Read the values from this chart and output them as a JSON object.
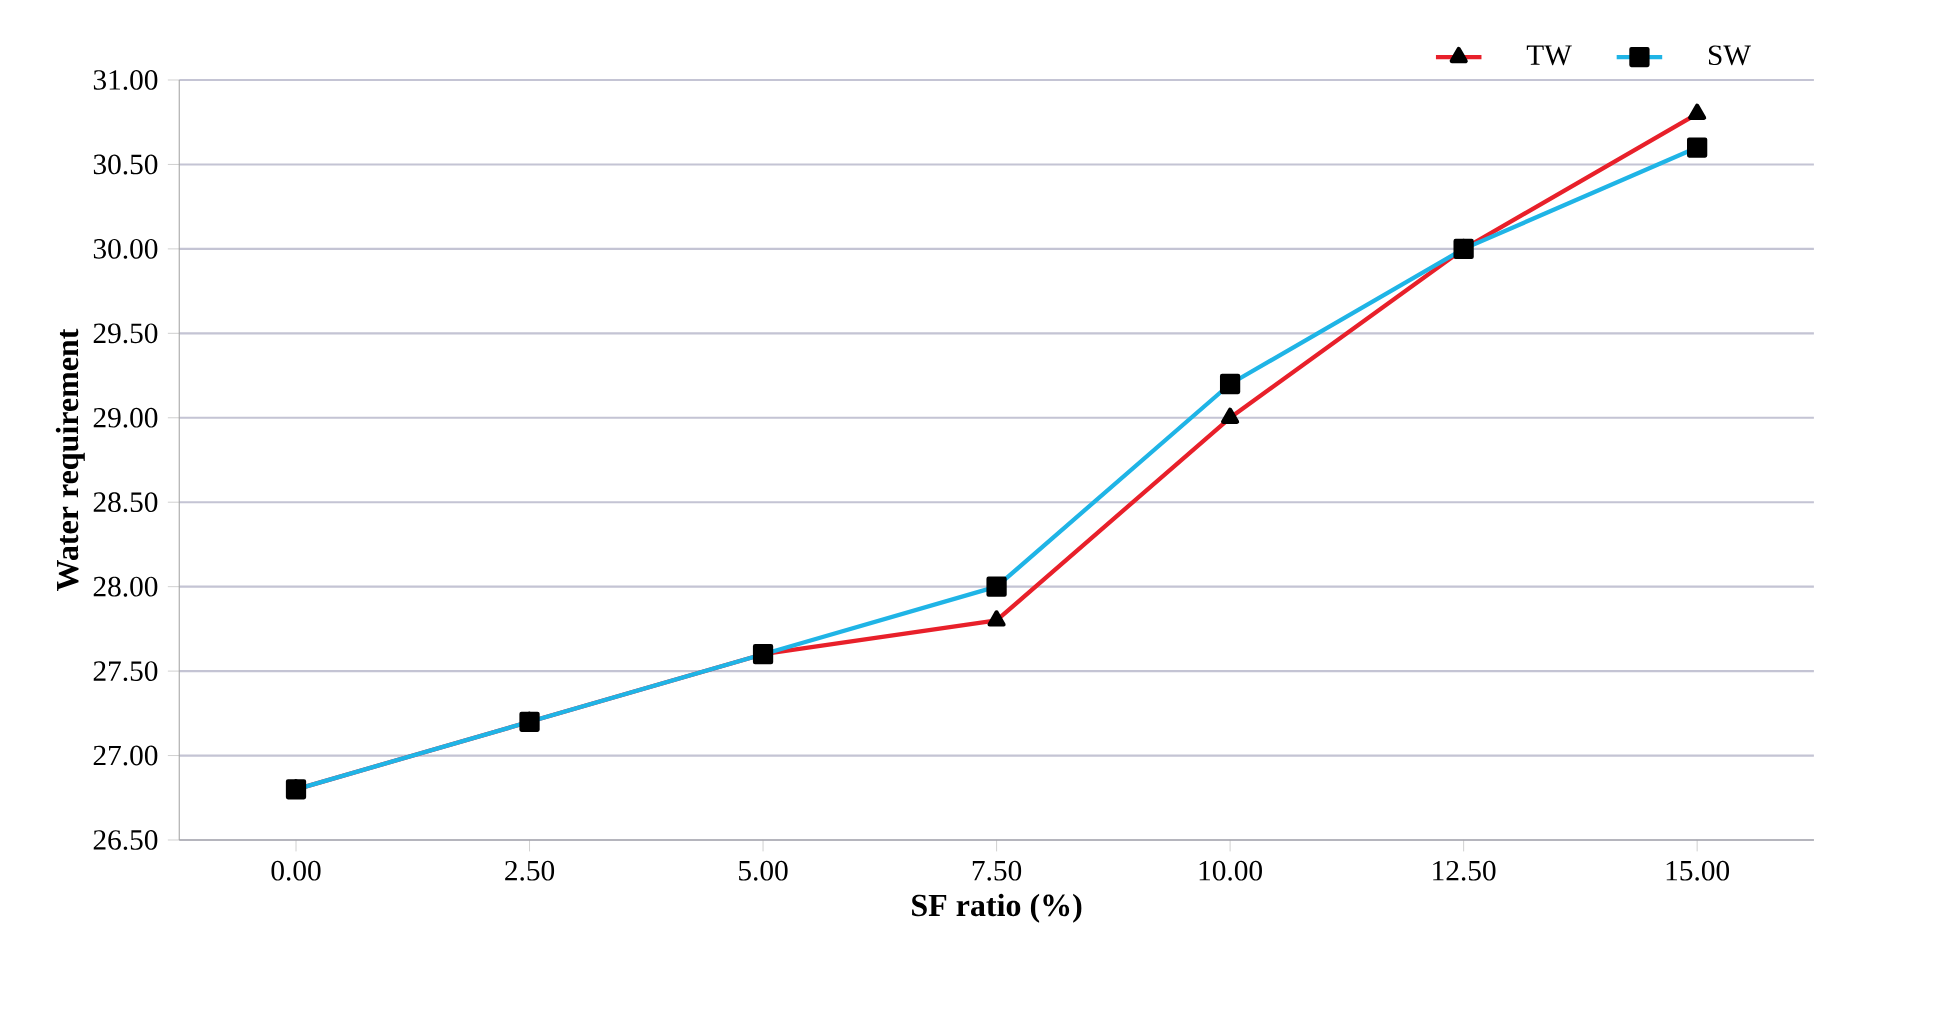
{
  "chart_data": {
    "type": "line",
    "xlabel": "SF ratio (%)",
    "ylabel": "Water requirement",
    "categories": [
      "0.00",
      "2.50",
      "5.00",
      "7.50",
      "10.00",
      "12.50",
      "15.00"
    ],
    "series": [
      {
        "name": "TW",
        "color": "#e8202a",
        "marker": "triangle",
        "values": [
          26.8,
          27.2,
          27.6,
          27.8,
          29.0,
          30.0,
          30.8
        ]
      },
      {
        "name": "SW",
        "color": "#1fb4e6",
        "marker": "square",
        "values": [
          26.8,
          27.2,
          27.6,
          28.0,
          29.2,
          30.0,
          30.6
        ]
      }
    ],
    "ylim": [
      26.5,
      31.0
    ],
    "yticks": [
      {
        "value": 26.5,
        "label": "26.50"
      },
      {
        "value": 27.0,
        "label": "27.00"
      },
      {
        "value": 27.5,
        "label": "27.50"
      },
      {
        "value": 28.0,
        "label": "28.00"
      },
      {
        "value": 28.5,
        "label": "28.50"
      },
      {
        "value": 29.0,
        "label": "29.00"
      },
      {
        "value": 29.5,
        "label": "29.50"
      },
      {
        "value": 30.0,
        "label": "30.00"
      },
      {
        "value": 30.5,
        "label": "30.50"
      },
      {
        "value": 31.0,
        "label": "31.00"
      }
    ],
    "grid": "y",
    "legend": "top right",
    "line_style": "solid"
  }
}
